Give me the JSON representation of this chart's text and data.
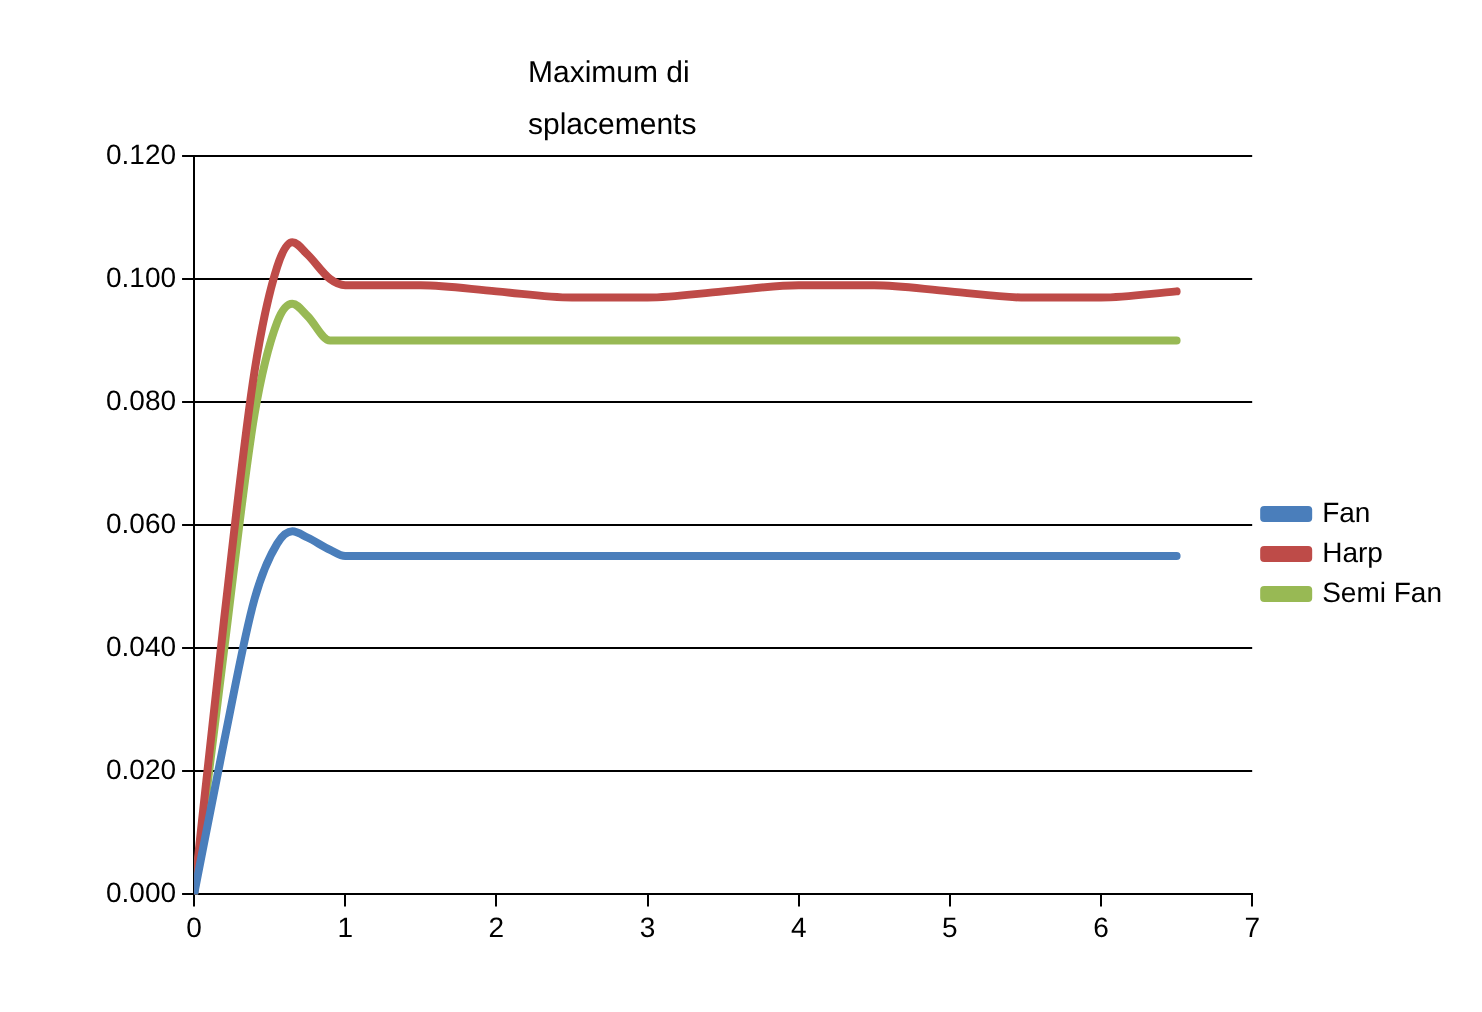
{
  "chart_data": {
    "type": "line",
    "title": "Maximum displacements",
    "xlim": [
      0,
      7
    ],
    "xticks": [
      0,
      1,
      2,
      3,
      4,
      5,
      6,
      7
    ],
    "ylim": [
      0,
      0.12
    ],
    "yticks": [
      {
        "value": 0,
        "label": "0.000"
      },
      {
        "value": 0.02,
        "label": "0.020"
      },
      {
        "value": 0.04,
        "label": "0.040"
      },
      {
        "value": 0.06,
        "label": "0.060"
      },
      {
        "value": 0.08,
        "label": "0.080"
      },
      {
        "value": 0.1,
        "label": "0.100"
      },
      {
        "value": 0.12,
        "label": "0.120"
      }
    ],
    "grid": "y",
    "legend": "right",
    "marker": "none",
    "line_style": "solid",
    "series": [
      {
        "name": "Fan",
        "color": "#4a7ebb",
        "x": [
          0,
          0.2,
          0.4,
          0.55,
          0.65,
          0.75,
          0.9,
          1,
          1.5,
          2,
          3,
          4,
          5,
          6,
          6.5
        ],
        "values": [
          0,
          0.025,
          0.048,
          0.057,
          0.059,
          0.058,
          0.056,
          0.055,
          0.055,
          0.055,
          0.055,
          0.055,
          0.055,
          0.055,
          0.055
        ]
      },
      {
        "name": "Harp",
        "color": "#be4b48",
        "x": [
          0,
          0.2,
          0.4,
          0.55,
          0.65,
          0.75,
          0.9,
          1,
          1.5,
          2,
          2.5,
          3,
          3.5,
          4,
          4.5,
          5,
          5.5,
          6,
          6.5
        ],
        "values": [
          0,
          0.045,
          0.085,
          0.102,
          0.106,
          0.104,
          0.1,
          0.099,
          0.099,
          0.098,
          0.097,
          0.097,
          0.098,
          0.099,
          0.099,
          0.098,
          0.097,
          0.097,
          0.098
        ]
      },
      {
        "name": "Semi Fan",
        "color": "#98b954",
        "x": [
          0,
          0.2,
          0.4,
          0.55,
          0.65,
          0.75,
          0.9,
          1,
          1.5,
          2,
          3,
          4,
          5,
          6,
          6.5
        ],
        "values": [
          0,
          0.04,
          0.078,
          0.093,
          0.096,
          0.094,
          0.09,
          0.09,
          0.09,
          0.09,
          0.09,
          0.09,
          0.09,
          0.09,
          0.09
        ]
      }
    ]
  }
}
